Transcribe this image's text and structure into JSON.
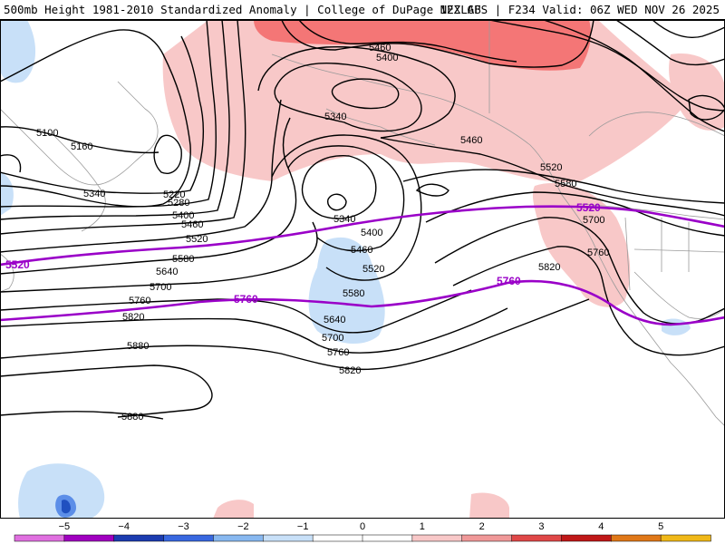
{
  "header": {
    "title_left": "500mb Height 1981-2010 Standardized Anomaly | College of DuPage NEXLAB",
    "title_right": "12Z GFS | F234 Valid: 06Z WED NOV 26 2025"
  },
  "colors": {
    "pos_light": "#f8c8c8",
    "pos_strong": "#f47676",
    "neg_light": "#c8e0f8",
    "neg_mid": "#5c8ee8",
    "neg_dark": "#2050c0",
    "purple_line": "#9a00c8",
    "land_border": "#9a9a9a"
  },
  "contours": {
    "black_labels": [
      "5100",
      "5160",
      "5220",
      "5280",
      "5340",
      "5400",
      "5460",
      "5520",
      "5580",
      "5640",
      "5700",
      "5760",
      "5820",
      "5880",
      "5880",
      "5460",
      "5400",
      "5340",
      "5340",
      "5400",
      "5460",
      "5520",
      "5580",
      "5640",
      "5700",
      "5760",
      "5820",
      "5460",
      "5520",
      "5580",
      "5700",
      "5760",
      "5820"
    ],
    "purple_labels": [
      "5520",
      "5760",
      "5520",
      "5760"
    ]
  },
  "colorbar": {
    "ticks": [
      "−5",
      "−4",
      "−3",
      "−2",
      "−1",
      "0",
      "1",
      "2",
      "3",
      "4",
      "5"
    ],
    "segments": [
      "#e070e0",
      "#a000c0",
      "#1c3cb0",
      "#3868e0",
      "#88b8f0",
      "#c8e0f8",
      "#ffffff",
      "#ffffff",
      "#f8c8c8",
      "#f09898",
      "#e04848",
      "#c01818",
      "#e07818",
      "#f0b818"
    ]
  }
}
